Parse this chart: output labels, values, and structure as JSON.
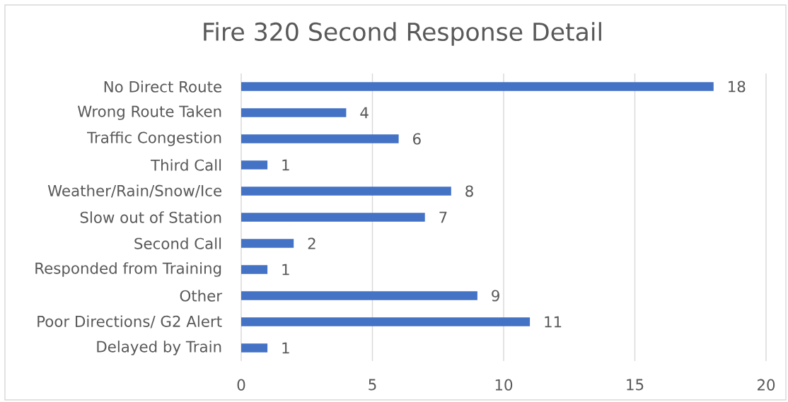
{
  "chart_data": {
    "type": "bar",
    "orientation": "horizontal",
    "title": "Fire 320 Second Response Detail",
    "categories": [
      "No Direct Route",
      "Wrong Route Taken",
      "Traffic Congestion",
      "Third Call",
      "Weather/Rain/Snow/Ice",
      "Slow out of Station",
      "Second Call",
      "Responded from Training",
      "Other",
      "Poor Directions/ G2 Alert",
      "Delayed by Train"
    ],
    "values": [
      18,
      4,
      6,
      1,
      8,
      7,
      2,
      1,
      9,
      11,
      1
    ],
    "color": "#4472c4",
    "xlim": [
      0,
      20
    ],
    "xticks": [
      0,
      5,
      10,
      15,
      20
    ],
    "grid": "x",
    "data_labels": true
  }
}
